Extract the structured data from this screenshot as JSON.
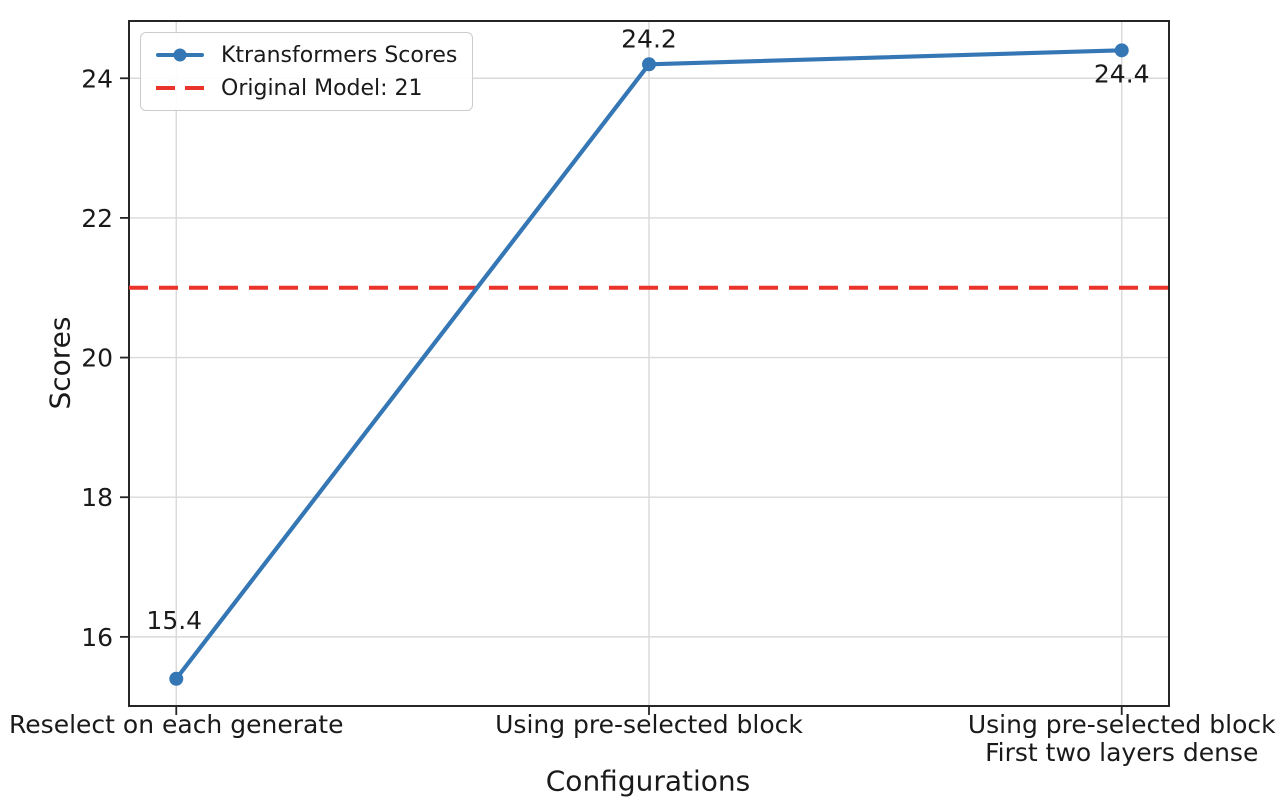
{
  "chart_data": {
    "type": "line",
    "title": "",
    "xlabel": "Configurations",
    "ylabel": "Scores",
    "categories": [
      "Reselect on each generate",
      "Using pre-selected block",
      "Using pre-selected block\nFirst two layers dense"
    ],
    "series": [
      {
        "name": "Ktransformers Scores",
        "values": [
          15.4,
          24.2,
          24.4
        ],
        "point_labels": [
          "15.4",
          "24.2",
          "24.4"
        ],
        "label_positions": [
          "above",
          "above",
          "below"
        ],
        "color": "#3577b5",
        "marker": "circle"
      }
    ],
    "reference_line": {
      "label": "Original Model: 21",
      "value": 21,
      "color": "#e9332b",
      "style": "dashed"
    },
    "yticks": [
      16,
      18,
      20,
      22,
      24
    ],
    "ytick_labels": [
      "16",
      "18",
      "20",
      "22",
      "24"
    ],
    "ylim": [
      15.01,
      24.82
    ],
    "grid": true,
    "grid_color": "#d9d9d9",
    "spine_color": "#262626",
    "text_color": "#1a1a1a",
    "legend_position": "upper-left",
    "legend": [
      "Ktransformers Scores",
      "Original Model: 21"
    ]
  }
}
